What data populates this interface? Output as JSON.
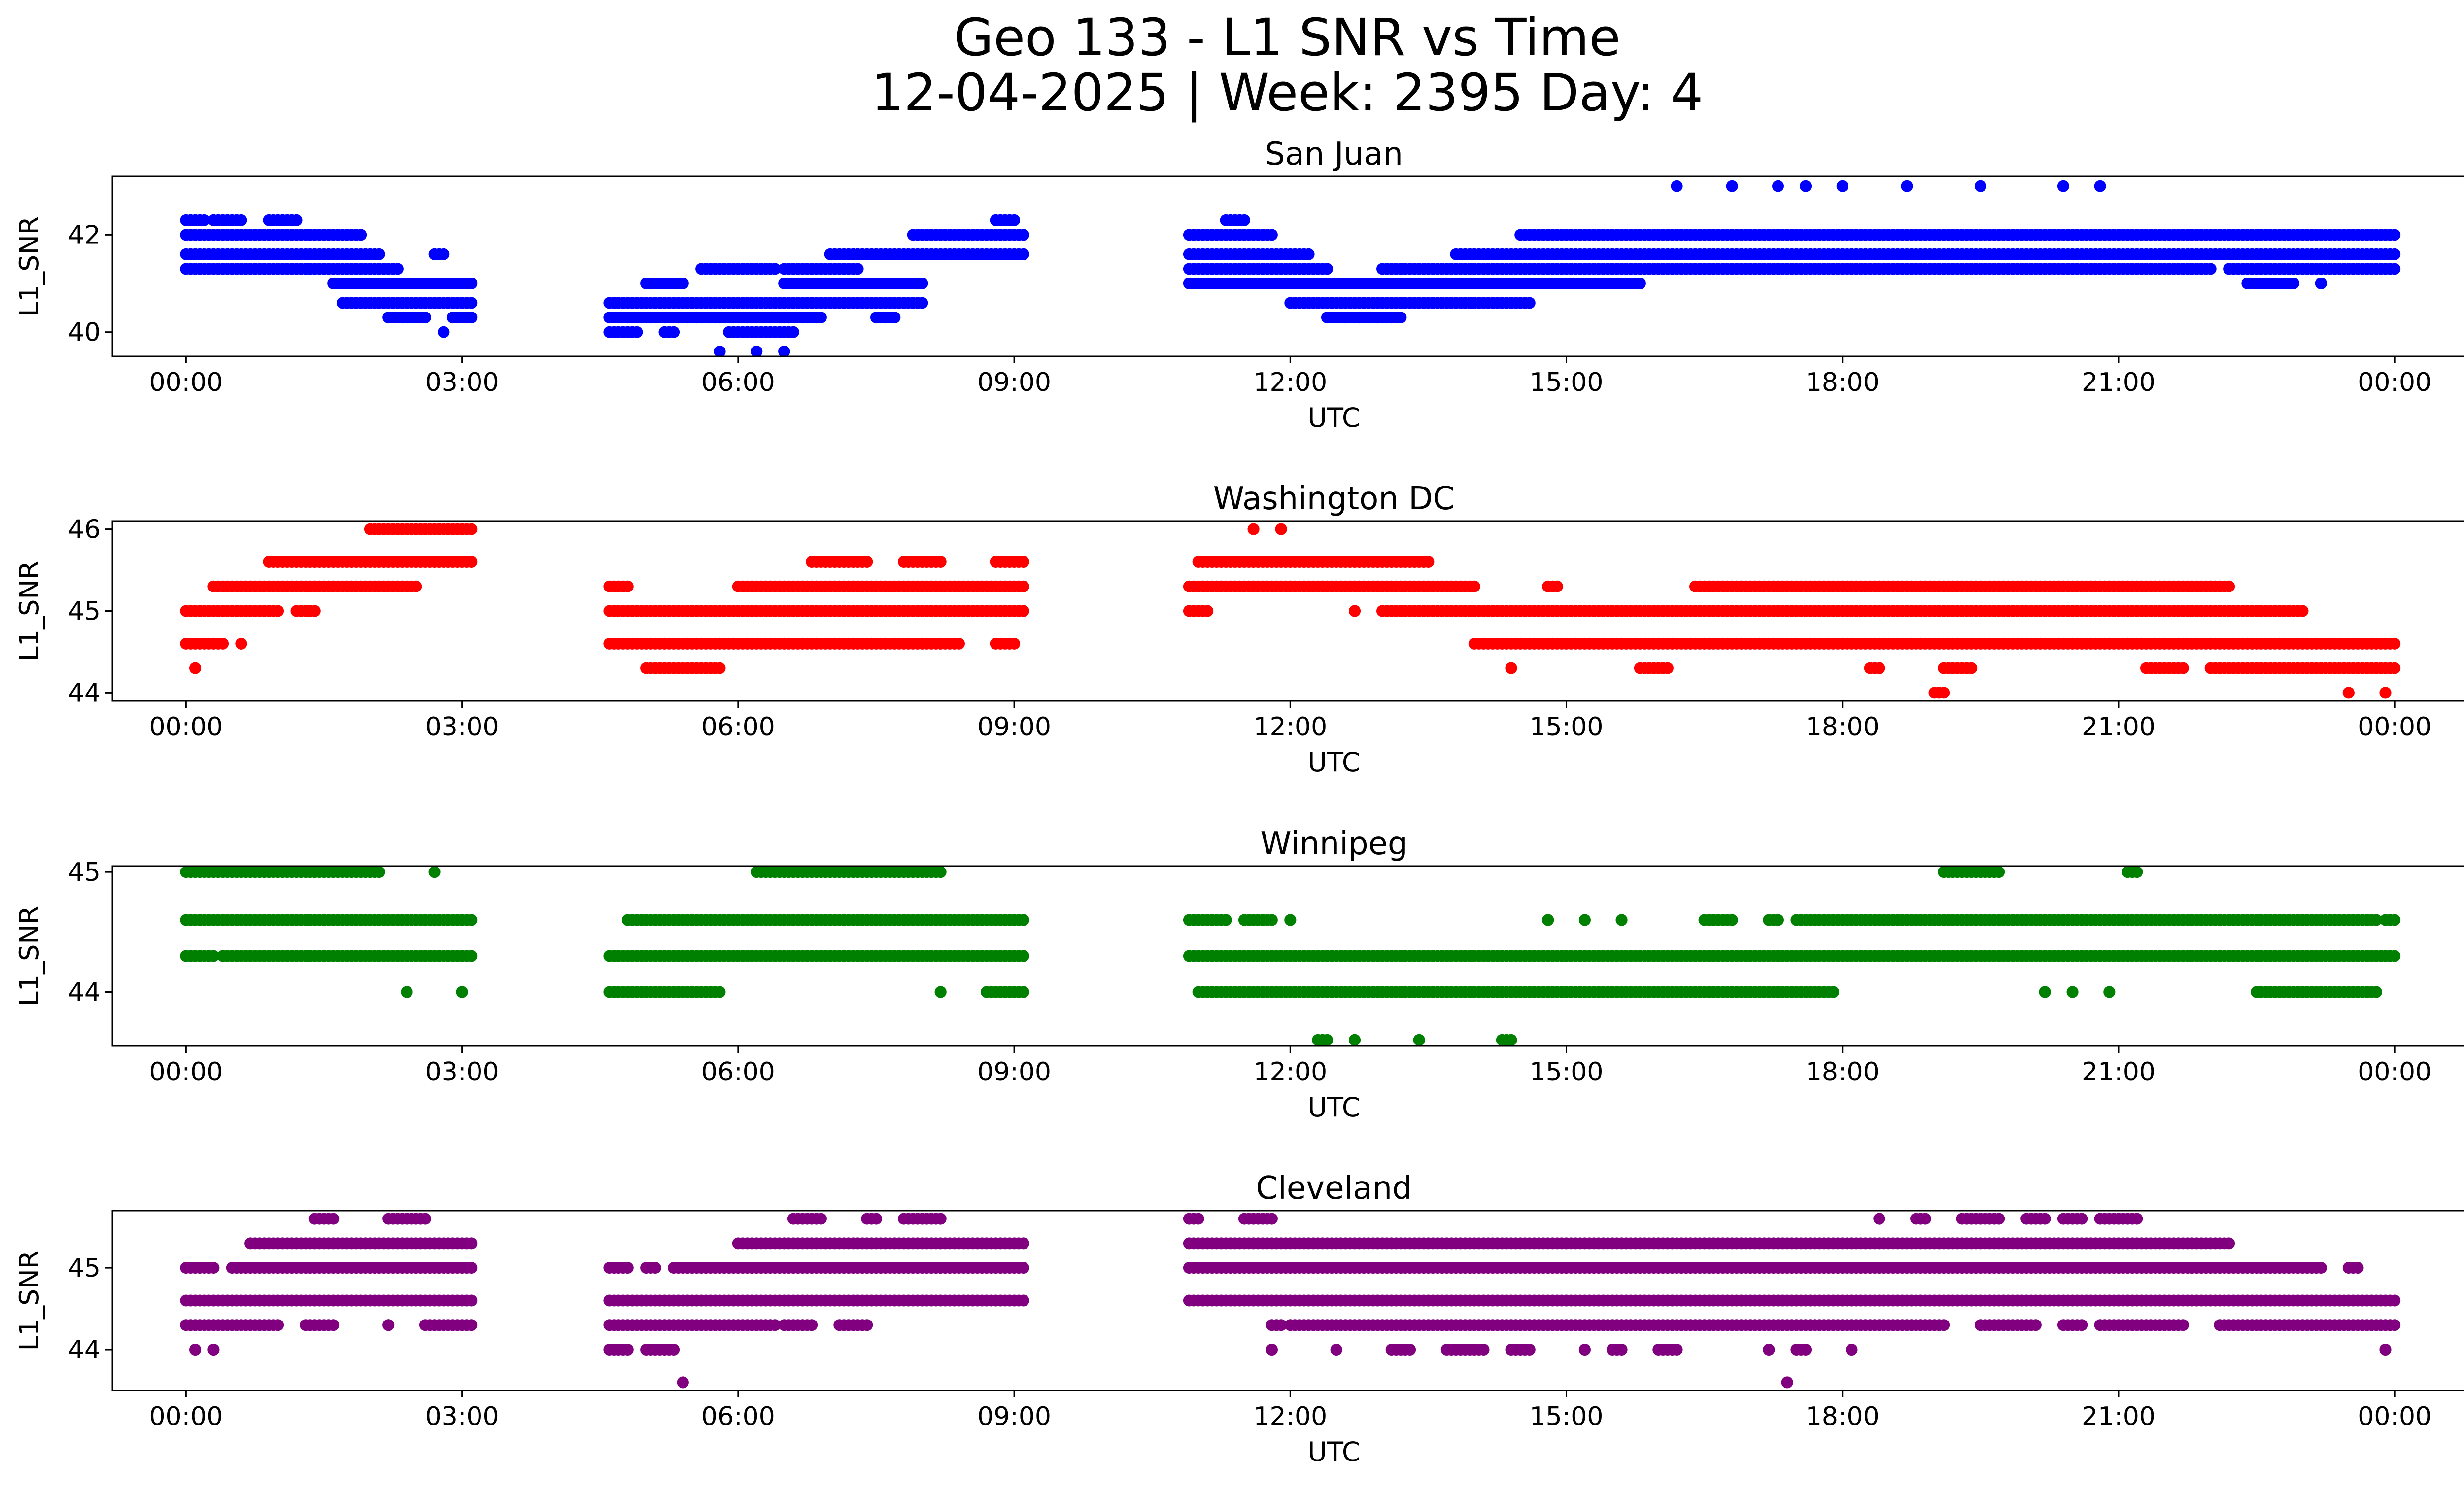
{
  "chart_data": {
    "type": "scatter",
    "title_line1": "Geo 133 - L1 SNR vs Time",
    "title_line2": "12-04-2025 | Week: 2395 Day: 4",
    "xlabel": "UTC",
    "ylabel": "L1_SNR",
    "xlim_hours": [
      -0.8,
      25.75
    ],
    "x_ticks": [
      {
        "value": 0,
        "label": "00:00"
      },
      {
        "value": 3,
        "label": "03:00"
      },
      {
        "value": 6,
        "label": "06:00"
      },
      {
        "value": 9,
        "label": "09:00"
      },
      {
        "value": 12,
        "label": "12:00"
      },
      {
        "value": 15,
        "label": "15:00"
      },
      {
        "value": 18,
        "label": "18:00"
      },
      {
        "value": 21,
        "label": "21:00"
      },
      {
        "value": 24,
        "label": "00:00"
      }
    ],
    "panels": [
      {
        "name": "San Juan",
        "color": "#0000ff",
        "ylim": [
          39.5,
          43.2
        ],
        "yticks": [
          {
            "value": 40,
            "label": "40"
          },
          {
            "value": 42,
            "label": "42"
          }
        ],
        "bands": [
          {
            "y": 42.3,
            "segments": [
              [
                0.0,
                0.2
              ],
              [
                0.3,
                0.6
              ],
              [
                0.9,
                1.2
              ],
              [
                8.8,
                9.0
              ],
              [
                11.3,
                11.5
              ]
            ]
          },
          {
            "y": 42.0,
            "segments": [
              [
                0.0,
                1.9
              ],
              [
                7.9,
                9.1
              ],
              [
                10.9,
                11.8
              ],
              [
                14.5,
                24.0
              ]
            ]
          },
          {
            "y": 41.6,
            "segments": [
              [
                0.0,
                2.1
              ],
              [
                2.7,
                2.8
              ],
              [
                7.0,
                9.1
              ],
              [
                10.9,
                12.2
              ],
              [
                13.8,
                24.0
              ]
            ]
          },
          {
            "y": 41.3,
            "segments": [
              [
                0.0,
                2.3
              ],
              [
                5.6,
                6.4
              ],
              [
                6.5,
                7.3
              ],
              [
                10.9,
                12.4
              ],
              [
                13.0,
                22.0
              ],
              [
                22.2,
                24.0
              ]
            ]
          },
          {
            "y": 41.0,
            "segments": [
              [
                1.6,
                3.1
              ],
              [
                5.0,
                5.4
              ],
              [
                6.5,
                8.0
              ],
              [
                10.9,
                15.8
              ],
              [
                22.4,
                22.9
              ]
            ]
          },
          {
            "y": 40.6,
            "segments": [
              [
                1.7,
                3.1
              ],
              [
                4.6,
                8.0
              ],
              [
                12.0,
                14.6
              ]
            ]
          },
          {
            "y": 40.3,
            "segments": [
              [
                2.2,
                2.6
              ],
              [
                2.9,
                3.1
              ],
              [
                4.6,
                6.9
              ],
              [
                7.5,
                7.7
              ],
              [
                12.4,
                13.2
              ]
            ]
          },
          {
            "y": 40.0,
            "segments": [
              [
                2.8,
                2.8
              ],
              [
                4.6,
                4.9
              ],
              [
                5.2,
                5.3
              ],
              [
                5.9,
                6.6
              ]
            ]
          },
          {
            "y": 39.6,
            "segments": [
              [
                5.8,
                5.8
              ],
              [
                6.2,
                6.2
              ],
              [
                6.5,
                6.5
              ]
            ]
          }
        ],
        "extra_points": [
          [
            16.2,
            43.0
          ],
          [
            16.8,
            43.0
          ],
          [
            17.3,
            43.0
          ],
          [
            17.6,
            43.0
          ],
          [
            18.0,
            43.0
          ],
          [
            18.7,
            43.0
          ],
          [
            19.5,
            43.0
          ],
          [
            20.4,
            43.0
          ],
          [
            20.8,
            43.0
          ],
          [
            22.7,
            41.0
          ],
          [
            23.2,
            41.0
          ]
        ]
      },
      {
        "name": "Washington DC",
        "color": "#ff0000",
        "ylim": [
          43.9,
          46.1
        ],
        "yticks": [
          {
            "value": 44,
            "label": "44"
          },
          {
            "value": 45,
            "label": "45"
          },
          {
            "value": 46,
            "label": "46"
          }
        ],
        "bands": [
          {
            "y": 46.0,
            "segments": [
              [
                2.0,
                3.1
              ],
              [
                11.6,
                11.6
              ],
              [
                11.9,
                11.9
              ]
            ]
          },
          {
            "y": 45.6,
            "segments": [
              [
                0.9,
                3.1
              ],
              [
                6.8,
                7.4
              ],
              [
                7.8,
                8.2
              ],
              [
                8.8,
                9.1
              ],
              [
                11.0,
                13.5
              ]
            ]
          },
          {
            "y": 45.3,
            "segments": [
              [
                0.3,
                2.5
              ],
              [
                4.6,
                4.8
              ],
              [
                6.0,
                9.1
              ],
              [
                10.9,
                14.0
              ],
              [
                14.8,
                14.9
              ],
              [
                16.4,
                22.2
              ]
            ]
          },
          {
            "y": 45.0,
            "segments": [
              [
                0.0,
                1.0
              ],
              [
                1.2,
                1.4
              ],
              [
                4.6,
                9.1
              ],
              [
                10.9,
                11.1
              ],
              [
                12.7,
                12.7
              ],
              [
                13.0,
                23.0
              ]
            ]
          },
          {
            "y": 44.6,
            "segments": [
              [
                0.0,
                0.4
              ],
              [
                0.6,
                0.6
              ],
              [
                4.6,
                8.4
              ],
              [
                8.8,
                9.0
              ],
              [
                14.0,
                24.0
              ]
            ]
          },
          {
            "y": 44.3,
            "segments": [
              [
                0.1,
                0.1
              ],
              [
                5.0,
                5.8
              ],
              [
                14.4,
                14.4
              ],
              [
                15.8,
                16.1
              ],
              [
                18.3,
                18.4
              ],
              [
                19.1,
                19.4
              ],
              [
                21.3,
                21.7
              ],
              [
                22.0,
                24.0
              ]
            ]
          },
          {
            "y": 44.0,
            "segments": [
              [
                19.0,
                19.1
              ],
              [
                23.5,
                23.5
              ],
              [
                23.9,
                23.9
              ]
            ]
          }
        ],
        "extra_points": []
      },
      {
        "name": "Winnipeg",
        "color": "#008000",
        "ylim": [
          43.55,
          45.05
        ],
        "yticks": [
          {
            "value": 44,
            "label": "44"
          },
          {
            "value": 45,
            "label": "45"
          }
        ],
        "bands": [
          {
            "y": 45.0,
            "segments": [
              [
                0.0,
                2.1
              ],
              [
                2.7,
                2.7
              ],
              [
                6.2,
                8.2
              ],
              [
                19.1,
                19.7
              ],
              [
                21.1,
                21.2
              ]
            ]
          },
          {
            "y": 44.6,
            "segments": [
              [
                0.0,
                3.1
              ],
              [
                4.8,
                9.1
              ],
              [
                10.9,
                11.3
              ],
              [
                11.5,
                11.8
              ],
              [
                12.0,
                12.0
              ],
              [
                14.8,
                14.8
              ],
              [
                15.2,
                15.2
              ],
              [
                15.6,
                15.6
              ],
              [
                16.5,
                16.8
              ],
              [
                17.2,
                17.3
              ],
              [
                17.5,
                23.8
              ],
              [
                23.9,
                24.0
              ]
            ]
          },
          {
            "y": 44.3,
            "segments": [
              [
                0.0,
                0.3
              ],
              [
                0.4,
                3.1
              ],
              [
                4.6,
                9.1
              ],
              [
                10.9,
                24.0
              ]
            ]
          },
          {
            "y": 44.0,
            "segments": [
              [
                2.4,
                2.4
              ],
              [
                3.0,
                3.0
              ],
              [
                4.6,
                5.8
              ],
              [
                8.2,
                8.2
              ],
              [
                8.7,
                9.1
              ],
              [
                11.0,
                17.9
              ],
              [
                20.2,
                20.2
              ],
              [
                20.5,
                20.5
              ],
              [
                20.9,
                20.9
              ],
              [
                22.5,
                23.8
              ]
            ]
          },
          {
            "y": 43.6,
            "segments": [
              [
                12.3,
                12.4
              ],
              [
                12.7,
                12.7
              ],
              [
                13.4,
                13.4
              ],
              [
                14.3,
                14.4
              ]
            ]
          }
        ],
        "extra_points": []
      },
      {
        "name": "Cleveland",
        "color": "#800080",
        "ylim": [
          43.5,
          45.7
        ],
        "yticks": [
          {
            "value": 44,
            "label": "44"
          },
          {
            "value": 45,
            "label": "45"
          }
        ],
        "bands": [
          {
            "y": 45.6,
            "segments": [
              [
                1.4,
                1.6
              ],
              [
                2.2,
                2.6
              ],
              [
                6.6,
                6.9
              ],
              [
                7.4,
                7.5
              ],
              [
                7.8,
                8.2
              ],
              [
                10.9,
                11.0
              ],
              [
                11.5,
                11.8
              ],
              [
                18.4,
                18.4
              ],
              [
                18.8,
                18.9
              ],
              [
                19.3,
                19.7
              ],
              [
                20.0,
                20.2
              ],
              [
                20.4,
                20.6
              ],
              [
                20.8,
                21.2
              ]
            ]
          },
          {
            "y": 45.3,
            "segments": [
              [
                0.7,
                3.1
              ],
              [
                6.0,
                9.1
              ],
              [
                10.9,
                22.2
              ]
            ]
          },
          {
            "y": 45.0,
            "segments": [
              [
                0.0,
                0.3
              ],
              [
                0.5,
                3.1
              ],
              [
                4.6,
                4.8
              ],
              [
                5.0,
                5.1
              ],
              [
                5.3,
                9.1
              ],
              [
                10.9,
                23.2
              ],
              [
                23.5,
                23.6
              ]
            ]
          },
          {
            "y": 44.6,
            "segments": [
              [
                0.0,
                3.1
              ],
              [
                4.6,
                9.1
              ],
              [
                10.9,
                24.0
              ]
            ]
          },
          {
            "y": 44.3,
            "segments": [
              [
                0.0,
                1.0
              ],
              [
                1.3,
                1.6
              ],
              [
                2.2,
                2.2
              ],
              [
                2.6,
                3.1
              ],
              [
                4.6,
                6.4
              ],
              [
                6.5,
                6.8
              ],
              [
                7.1,
                7.4
              ],
              [
                11.8,
                11.9
              ],
              [
                12.0,
                19.1
              ],
              [
                19.5,
                20.1
              ],
              [
                20.4,
                20.6
              ],
              [
                20.8,
                21.7
              ],
              [
                22.1,
                24.0
              ]
            ]
          },
          {
            "y": 44.0,
            "segments": [
              [
                0.1,
                0.1
              ],
              [
                0.3,
                0.3
              ],
              [
                4.6,
                4.8
              ],
              [
                5.0,
                5.3
              ],
              [
                11.8,
                11.8
              ],
              [
                12.5,
                12.5
              ],
              [
                13.1,
                13.3
              ],
              [
                13.7,
                14.1
              ],
              [
                14.4,
                14.6
              ],
              [
                15.2,
                15.2
              ],
              [
                15.5,
                15.6
              ],
              [
                16.0,
                16.2
              ],
              [
                17.2,
                17.2
              ],
              [
                17.5,
                17.6
              ],
              [
                18.1,
                18.1
              ],
              [
                23.9,
                23.9
              ]
            ]
          },
          {
            "y": 43.6,
            "segments": [
              [
                5.4,
                5.4
              ],
              [
                17.4,
                17.4
              ]
            ]
          }
        ],
        "extra_points": []
      }
    ]
  }
}
